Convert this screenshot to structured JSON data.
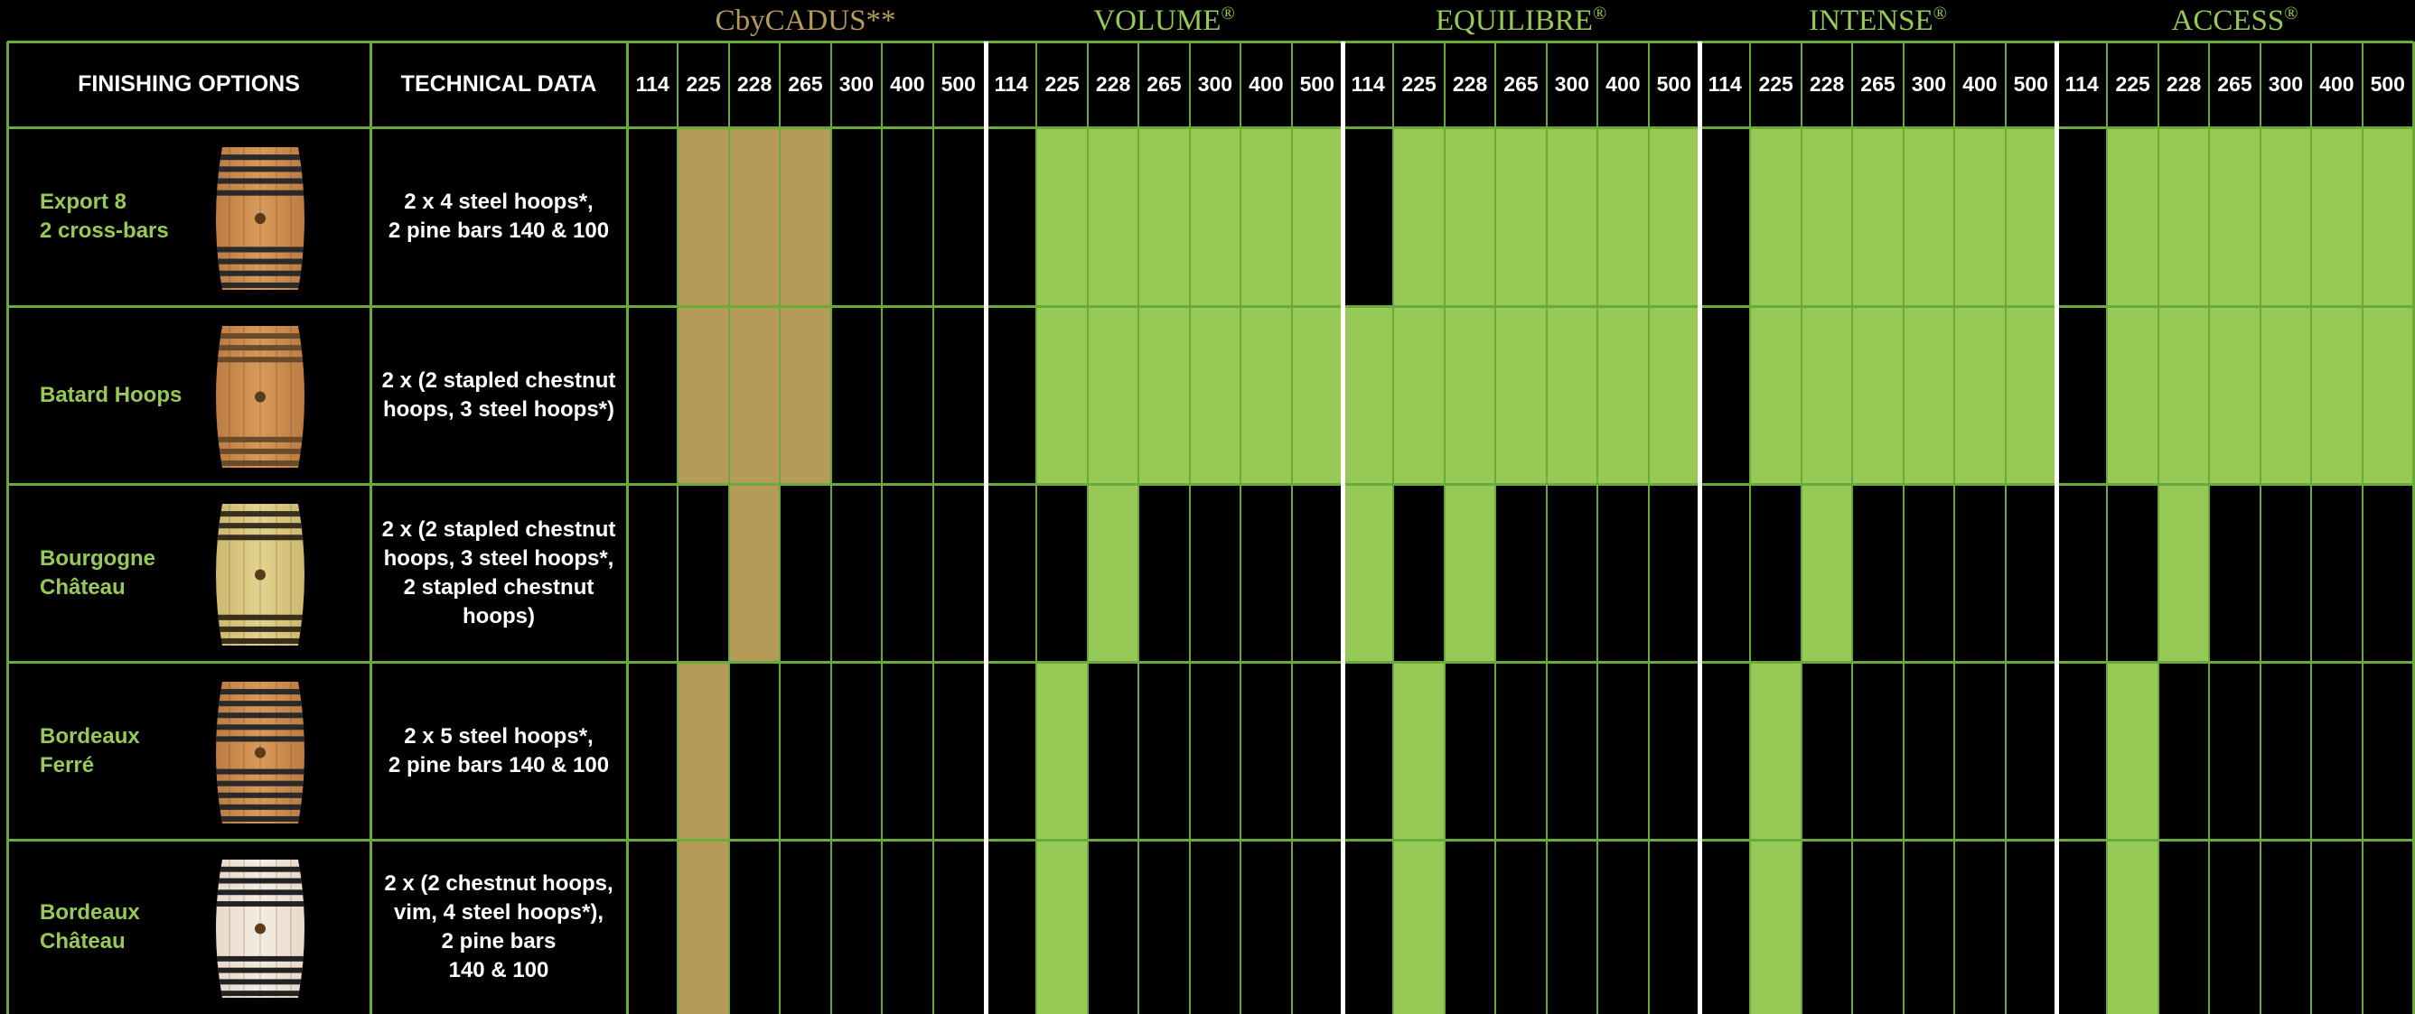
{
  "groups": [
    {
      "name": "CbyCADUS",
      "mark": "**",
      "color": "#b69a5a"
    },
    {
      "name": "VOLUME",
      "mark": "®",
      "color": "#97c957"
    },
    {
      "name": "EQUILIBRE",
      "mark": "®",
      "color": "#97c957"
    },
    {
      "name": "INTENSE",
      "mark": "®",
      "color": "#97c957"
    },
    {
      "name": "ACCESS",
      "mark": "®",
      "color": "#97c957"
    }
  ],
  "sizes": [
    "114",
    "225",
    "228",
    "265",
    "300",
    "400",
    "500"
  ],
  "header": {
    "finishing": "FINISHING OPTIONS",
    "technical": "TECHNICAL DATA"
  },
  "colors": {
    "green": "#97c957",
    "gold": "#b69a5a",
    "gridline": "#6aaa3a",
    "separator": "#ffffff",
    "background": "#000000"
  },
  "rows": [
    {
      "name": [
        "Export 8",
        "2 cross-bars"
      ],
      "tech": [
        "2 x 4 steel hoops*,",
        "2 pine bars 140 & 100"
      ],
      "barrel": "oak-barrel-steel-hoops",
      "availability": [
        [
          0,
          1,
          1,
          1,
          0,
          0,
          0
        ],
        [
          0,
          1,
          1,
          1,
          1,
          1,
          1
        ],
        [
          0,
          1,
          1,
          1,
          1,
          1,
          1
        ],
        [
          0,
          1,
          1,
          1,
          1,
          1,
          1
        ],
        [
          0,
          1,
          1,
          1,
          1,
          1,
          1
        ]
      ]
    },
    {
      "name": [
        "Batard Hoops"
      ],
      "tech": [
        "2 x (2 stapled chestnut",
        "hoops, 3 steel hoops*)"
      ],
      "barrel": "oak-barrel-batard-hoops",
      "availability": [
        [
          0,
          1,
          1,
          1,
          0,
          0,
          0
        ],
        [
          0,
          1,
          1,
          1,
          1,
          1,
          1
        ],
        [
          1,
          1,
          1,
          1,
          1,
          1,
          1
        ],
        [
          0,
          1,
          1,
          1,
          1,
          1,
          1
        ],
        [
          0,
          1,
          1,
          1,
          1,
          1,
          1
        ]
      ]
    },
    {
      "name": [
        "Bourgogne",
        "Château"
      ],
      "tech": [
        "2 x (2 stapled chestnut",
        "hoops, 3 steel hoops*,",
        "2 stapled chestnut",
        "hoops)"
      ],
      "barrel": "oak-barrel-bourgogne",
      "availability": [
        [
          0,
          0,
          1,
          0,
          0,
          0,
          0
        ],
        [
          0,
          0,
          1,
          0,
          0,
          0,
          0
        ],
        [
          1,
          0,
          1,
          0,
          0,
          0,
          0
        ],
        [
          0,
          0,
          1,
          0,
          0,
          0,
          0
        ],
        [
          0,
          0,
          1,
          0,
          0,
          0,
          0
        ]
      ]
    },
    {
      "name": [
        "Bordeaux",
        "Ferré"
      ],
      "tech": [
        "2 x 5 steel hoops*,",
        "2 pine bars 140 & 100"
      ],
      "barrel": "oak-barrel-bordeaux-ferre",
      "availability": [
        [
          0,
          1,
          0,
          0,
          0,
          0,
          0
        ],
        [
          0,
          1,
          0,
          0,
          0,
          0,
          0
        ],
        [
          0,
          1,
          0,
          0,
          0,
          0,
          0
        ],
        [
          0,
          1,
          0,
          0,
          0,
          0,
          0
        ],
        [
          0,
          1,
          0,
          0,
          0,
          0,
          0
        ]
      ]
    },
    {
      "name": [
        "Bordeaux",
        "Château"
      ],
      "tech": [
        "2 x (2 chestnut hoops,",
        "vim, 4 steel hoops*),",
        "2 pine bars",
        "140 & 100"
      ],
      "barrel": "oak-barrel-bordeaux-chateau",
      "availability": [
        [
          0,
          1,
          0,
          0,
          0,
          0,
          0
        ],
        [
          0,
          1,
          0,
          0,
          0,
          0,
          0
        ],
        [
          0,
          1,
          0,
          0,
          0,
          0,
          0
        ],
        [
          0,
          1,
          0,
          0,
          0,
          0,
          0
        ],
        [
          0,
          1,
          0,
          0,
          0,
          0,
          0
        ]
      ]
    }
  ]
}
